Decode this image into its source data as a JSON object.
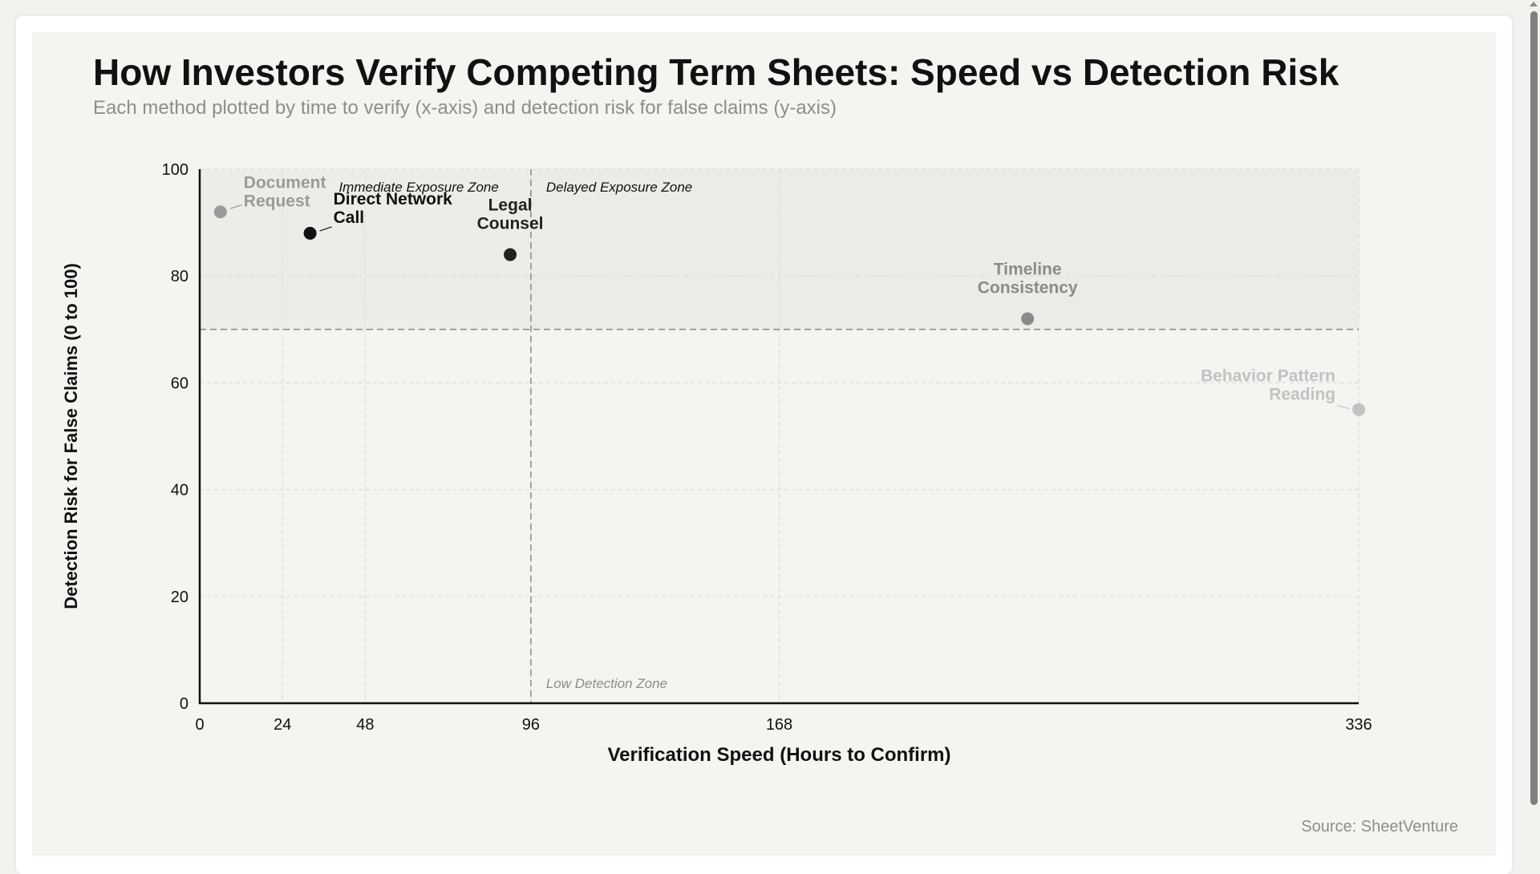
{
  "page": {
    "source": "Source: SheetVenture"
  },
  "chart_data": {
    "type": "scatter",
    "title": "How Investors Verify Competing Term Sheets: Speed vs Detection Risk",
    "subtitle": "Each method plotted by time to verify (x-axis) and detection risk for false claims (y-axis)",
    "xlabel": "Verification Speed (Hours to Confirm)",
    "ylabel": "Detection Risk for False Claims (0 to 100)",
    "xlim": [
      0,
      336
    ],
    "ylim": [
      0,
      100
    ],
    "x_ticks": [
      0,
      24,
      48,
      96,
      168,
      336
    ],
    "y_ticks": [
      0,
      20,
      40,
      60,
      80,
      100
    ],
    "grid": true,
    "thresholds": {
      "x": 96,
      "y": 70
    },
    "zones": [
      {
        "label": "Immediate Exposure Zone"
      },
      {
        "label": "Delayed Exposure Zone"
      },
      {
        "label": "Low Detection Zone"
      }
    ],
    "points": [
      {
        "label_lines": [
          "Document",
          "Request"
        ],
        "x": 6,
        "y": 92,
        "color": "#9a9a9a"
      },
      {
        "label_lines": [
          "Direct Network",
          "Call"
        ],
        "x": 32,
        "y": 88,
        "color": "#111111"
      },
      {
        "label_lines": [
          "Legal",
          "Counsel"
        ],
        "x": 90,
        "y": 84,
        "color": "#222222"
      },
      {
        "label_lines": [
          "Timeline",
          "Consistency"
        ],
        "x": 240,
        "y": 72,
        "color": "#8a8a8a"
      },
      {
        "label_lines": [
          "Behavior Pattern",
          "Reading"
        ],
        "x": 336,
        "y": 55,
        "color": "#c2c2c2"
      }
    ]
  }
}
